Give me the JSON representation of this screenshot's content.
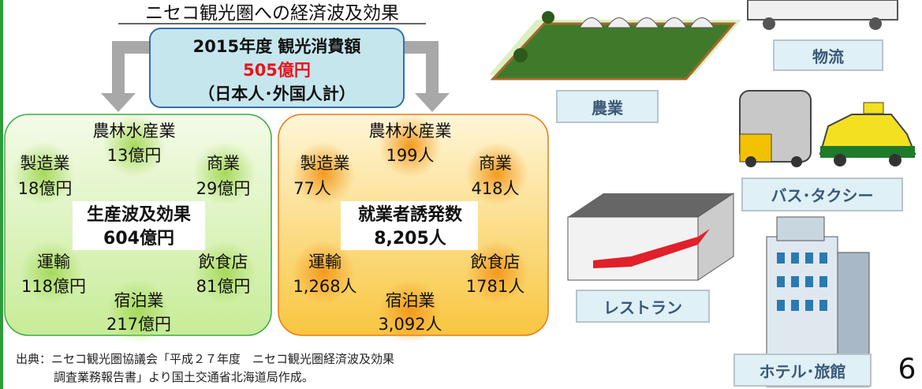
{
  "title": "ニセコ観光圏への経済波及効果",
  "consumption": {
    "label": "2015年度 観光消費額",
    "amount": "505億円",
    "note": "（日本人･外国人計）"
  },
  "production": {
    "label": "生産波及効果",
    "total": "604億円",
    "items": [
      {
        "name": "農林水産業",
        "value": "13億円"
      },
      {
        "name": "製造業",
        "value": "18億円"
      },
      {
        "name": "商業",
        "value": "29億円"
      },
      {
        "name": "運輸",
        "value": "118億円"
      },
      {
        "name": "飲食店",
        "value": "81億円"
      },
      {
        "name": "宿泊業",
        "value": "217億円"
      }
    ]
  },
  "employment": {
    "label": "就業者誘発数",
    "total": "8,205人",
    "items": [
      {
        "name": "農林水産業",
        "value": "199人"
      },
      {
        "name": "製造業",
        "value": "77人"
      },
      {
        "name": "商業",
        "value": "418人"
      },
      {
        "name": "運輸",
        "value": "1,268人"
      },
      {
        "name": "飲食店",
        "value": "1781人"
      },
      {
        "name": "宿泊業",
        "value": "3,092人"
      }
    ]
  },
  "sectors": [
    "農業",
    "物流",
    "バス･タクシー",
    "レストラン",
    "ホテル･旅館"
  ],
  "source": [
    "出典：ニセコ観光圏協議会「平成２７年度　ニセコ観光圏経済波及効果",
    "調査業務報告書」より国土交通省北海道局作成。"
  ],
  "page_number": "6"
}
